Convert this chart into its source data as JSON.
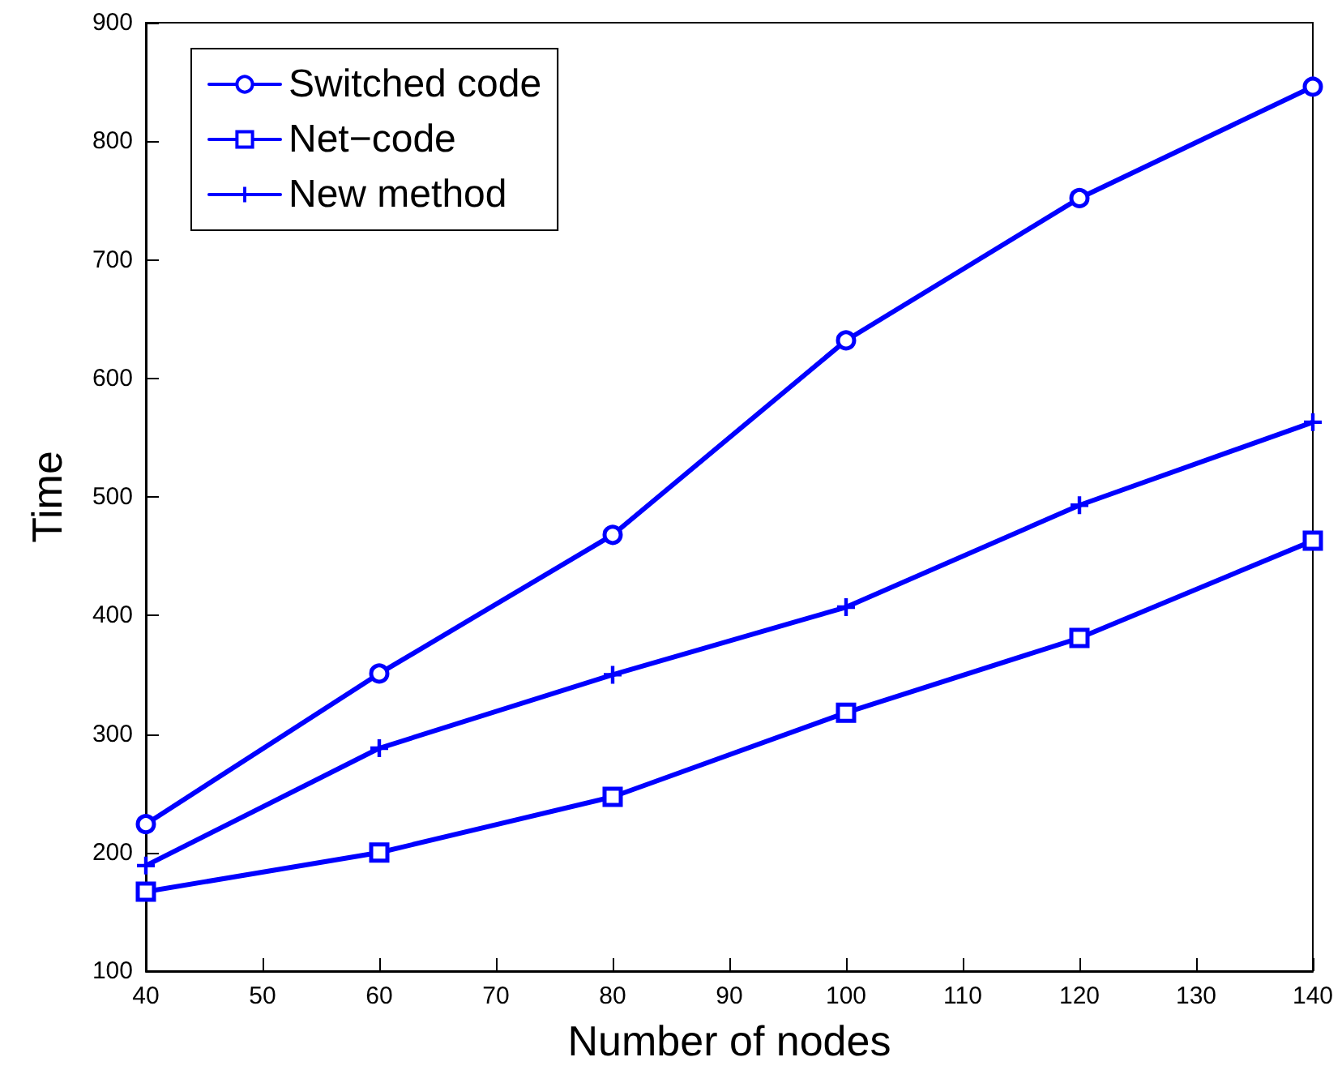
{
  "chart_data": {
    "type": "line",
    "xlabel": "Number of nodes",
    "ylabel": "Time",
    "x": [
      40,
      60,
      80,
      100,
      120,
      140
    ],
    "series": [
      {
        "name": "Switched code",
        "color": "#0000ff",
        "marker": "circle",
        "values": [
          224,
          351,
          468,
          632,
          752,
          846
        ]
      },
      {
        "name": "Net−code",
        "color": "#0000ff",
        "marker": "square",
        "values": [
          167,
          200,
          247,
          318,
          381,
          463
        ]
      },
      {
        "name": "New method",
        "color": "#0000ff",
        "marker": "cross",
        "values": [
          189,
          288,
          350,
          407,
          493,
          563
        ]
      }
    ],
    "xlim": [
      40,
      140
    ],
    "xticks": [
      40,
      50,
      60,
      70,
      80,
      90,
      100,
      110,
      120,
      130,
      140
    ],
    "ylim": [
      100,
      900
    ],
    "yticks": [
      100,
      200,
      300,
      400,
      500,
      600,
      700,
      800,
      900
    ],
    "grid": false,
    "legend": "top left",
    "line_style": "solid"
  }
}
